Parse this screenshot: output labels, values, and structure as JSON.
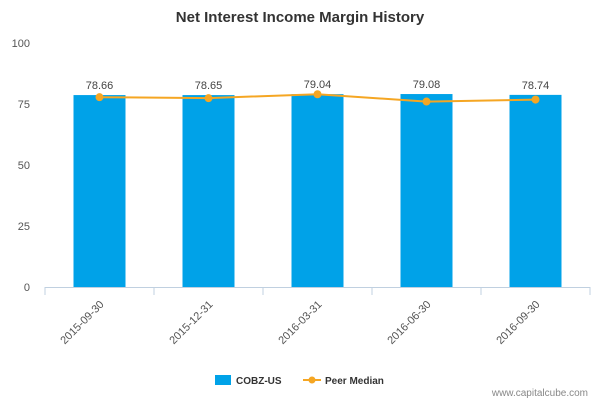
{
  "chart_data": {
    "type": "bar",
    "title": "Net Interest Income Margin History",
    "categories": [
      "2015-09-30",
      "2015-12-31",
      "2016-03-31",
      "2016-06-30",
      "2016-09-30"
    ],
    "series": [
      {
        "name": "COBZ-US",
        "kind": "bar",
        "values": [
          78.66,
          78.65,
          79.04,
          79.08,
          78.74
        ],
        "color": "#00A2E8"
      },
      {
        "name": "Peer Median",
        "kind": "line",
        "values": [
          77.8,
          77.4,
          79.0,
          76.0,
          76.8
        ],
        "color": "#F5A623"
      }
    ],
    "data_labels": [
      "78.66",
      "78.65",
      "79.04",
      "79.08",
      "78.74"
    ],
    "yticks": [
      0,
      25,
      50,
      75,
      100
    ],
    "ylim": [
      0,
      100
    ],
    "xlabel": "",
    "ylabel": "",
    "legend_position": "bottom",
    "grid": false
  },
  "credit": "www.capitalcube.com",
  "colors": {
    "bar": "#00A2E8",
    "line": "#F5A623",
    "axis": "#C0D0E0"
  }
}
